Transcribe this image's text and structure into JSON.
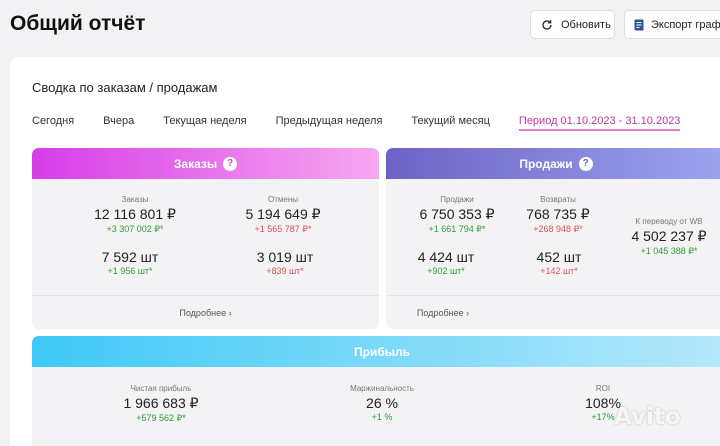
{
  "header": {
    "title": "Общий отчёт",
    "refresh_label": "Обновить",
    "export_label": "Экспорт графиков"
  },
  "summary": {
    "title": "Сводка по заказам / продажам",
    "tabs": [
      {
        "label": "Сегодня",
        "active": false
      },
      {
        "label": "Вчера",
        "active": false
      },
      {
        "label": "Текущая неделя",
        "active": false
      },
      {
        "label": "Предыдущая неделя",
        "active": false
      },
      {
        "label": "Текущий месяц",
        "active": false
      },
      {
        "label": "Период 01.10.2023 - 31.10.2023",
        "active": true
      }
    ]
  },
  "orders": {
    "title": "Заказы",
    "help": "?",
    "orders_label": "Заказы",
    "orders_value": "12 116 801 ₽",
    "orders_delta": "+3 307 002 ₽*",
    "orders_qty": "7 592 шт",
    "orders_qty_delta": "+1 956 шт*",
    "cancels_label": "Отмены",
    "cancels_value": "5 194 649 ₽",
    "cancels_delta": "+1 565 787 ₽*",
    "cancels_qty": "3 019 шт",
    "cancels_qty_delta": "+839 шт*",
    "more_label": "Подробнее ›"
  },
  "sales": {
    "title": "Продажи",
    "help": "?",
    "sales_label": "Продажи",
    "sales_value": "6 750 353 ₽",
    "sales_delta": "+1 661 794 ₽*",
    "sales_qty": "4 424 шт",
    "sales_qty_delta": "+902 шт*",
    "returns_label": "Возвраты",
    "returns_value": "768 735 ₽",
    "returns_delta": "+268 948 ₽*",
    "returns_qty": "452 шт",
    "returns_qty_delta": "+142 шт*",
    "payout_label": "К переводу от WB",
    "payout_value": "4 502 237 ₽",
    "payout_delta": "+1 045 388 ₽*",
    "more_label": "Подробнее ›"
  },
  "profit": {
    "title": "Прибыль",
    "net_label": "Чистая прибыль",
    "net_value": "1 966 683 ₽",
    "net_delta": "+579 562 ₽*",
    "margin_label": "Маржинальность",
    "margin_value": "26 %",
    "margin_delta": "+1 %",
    "roi_label": "ROI",
    "roi_value": "108%",
    "roi_delta": "+17%"
  },
  "watermark": "Avito",
  "colors": {
    "orders_header": "#d63de8",
    "sales_header": "#6d62c6",
    "profit_header": "#3fc9f7",
    "positive": "#2e9b32",
    "negative": "#d9534f",
    "active_tab": "#c0399a"
  }
}
